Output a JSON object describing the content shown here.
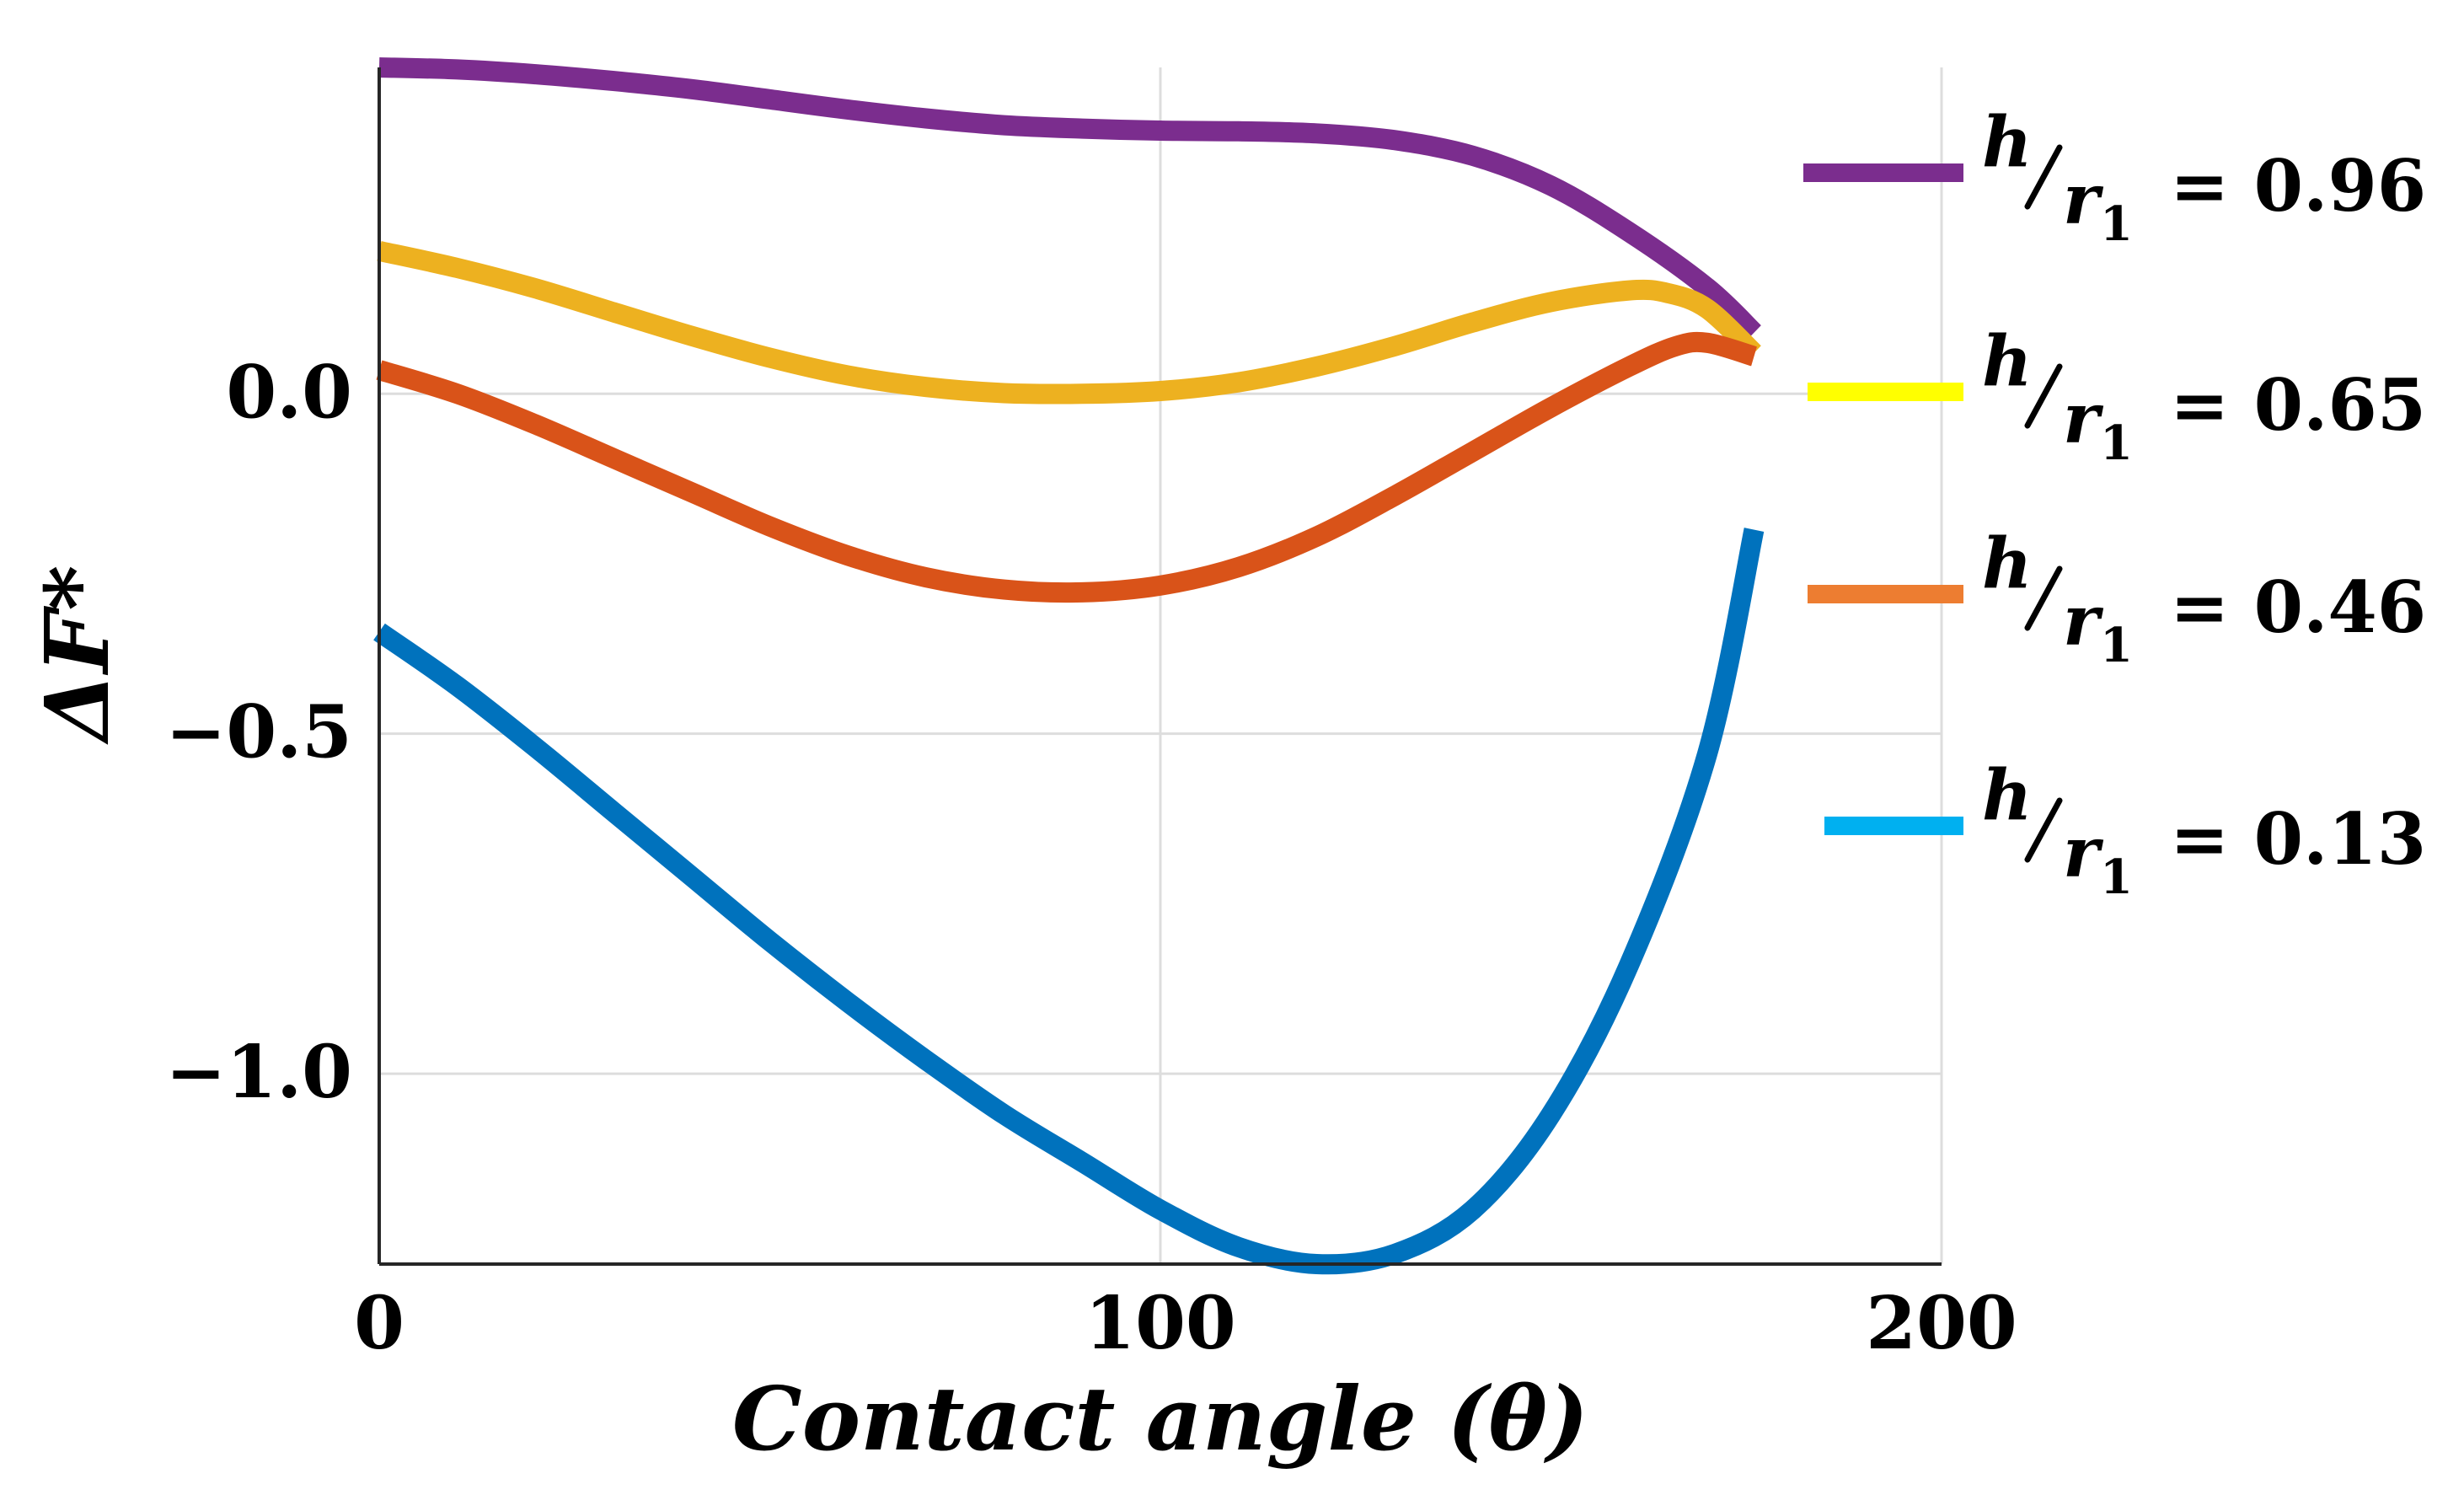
{
  "chart_data": {
    "type": "line",
    "title": "",
    "xlabel": "Contact angle (θ)",
    "ylabel": "ΔF*",
    "xlim": [
      0,
      200
    ],
    "ylim": [
      -1.28,
      0.48
    ],
    "xticks": [
      0,
      100,
      200
    ],
    "xtick_labels": [
      "0",
      "100",
      "200"
    ],
    "yticks": [
      0.0,
      -0.5,
      -1.0
    ],
    "ytick_labels": [
      "0.0",
      "−0.5",
      "−1.0"
    ],
    "grid": true,
    "legend_position": "right",
    "series": [
      {
        "name": "h/r1 = 0.96",
        "legend": {
          "num": "h",
          "den": "r",
          "sub": "1",
          "value": "= 0.96"
        },
        "color": "#7B2D8E",
        "legend_color": "#7B2D8E",
        "x": [
          0,
          10,
          20,
          30,
          40,
          50,
          60,
          70,
          80,
          90,
          100,
          110,
          120,
          130,
          140,
          150,
          160,
          170,
          176
        ],
        "y": [
          0.48,
          0.477,
          0.47,
          0.46,
          0.448,
          0.433,
          0.418,
          0.405,
          0.395,
          0.39,
          0.387,
          0.386,
          0.383,
          0.373,
          0.35,
          0.306,
          0.238,
          0.156,
          0.09
        ]
      },
      {
        "name": "h/r1 = 0.65",
        "legend": {
          "num": "h",
          "den": "r",
          "sub": "1",
          "value": "= 0.65"
        },
        "color": "#EDB120",
        "legend_color": "#FFFF00",
        "x": [
          0,
          10,
          20,
          30,
          40,
          50,
          60,
          70,
          80,
          90,
          100,
          110,
          120,
          130,
          140,
          150,
          160,
          165,
          170,
          176
        ],
        "y": [
          0.21,
          0.185,
          0.155,
          0.12,
          0.085,
          0.053,
          0.027,
          0.01,
          0.001,
          0.0,
          0.004,
          0.017,
          0.04,
          0.07,
          0.105,
          0.135,
          0.152,
          0.148,
          0.125,
          0.06
        ]
      },
      {
        "name": "h/r1 = 0.46",
        "legend": {
          "num": "h",
          "den": "r",
          "sub": "1",
          "value": "= 0.46"
        },
        "color": "#D95319",
        "legend_color": "#ED7D31",
        "x": [
          0,
          10,
          20,
          30,
          40,
          50,
          60,
          70,
          80,
          90,
          100,
          110,
          120,
          130,
          140,
          150,
          160,
          166,
          170,
          176
        ],
        "y": [
          0.035,
          0.0,
          -0.045,
          -0.095,
          -0.145,
          -0.195,
          -0.238,
          -0.27,
          -0.288,
          -0.292,
          -0.282,
          -0.255,
          -0.21,
          -0.15,
          -0.085,
          -0.02,
          0.04,
          0.07,
          0.075,
          0.055
        ]
      },
      {
        "name": "h/r1 = 0.13",
        "legend": {
          "num": "h",
          "den": "r",
          "sub": "1",
          "value": "= 0.13"
        },
        "color": "#0072BD",
        "legend_color": "#00B0F0",
        "x": [
          0,
          10,
          20,
          30,
          40,
          50,
          60,
          70,
          80,
          90,
          100,
          110,
          120,
          130,
          140,
          150,
          160,
          170,
          176
        ],
        "y": [
          -0.35,
          -0.43,
          -0.52,
          -0.615,
          -0.71,
          -0.805,
          -0.895,
          -0.98,
          -1.06,
          -1.13,
          -1.2,
          -1.255,
          -1.28,
          -1.265,
          -1.2,
          -1.06,
          -0.84,
          -0.53,
          -0.2
        ]
      }
    ]
  }
}
